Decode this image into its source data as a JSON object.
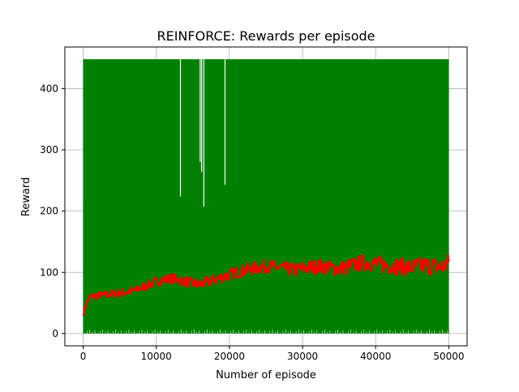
{
  "chart_data": {
    "type": "line",
    "title": "REINFORCE: Rewards per episode",
    "xlabel": "Number of episode",
    "ylabel": "Reward",
    "xlim": [
      -2500,
      52500
    ],
    "ylim": [
      -20,
      468
    ],
    "xticks": [
      0,
      10000,
      20000,
      30000,
      40000,
      50000
    ],
    "yticks": [
      0,
      100,
      200,
      300,
      400
    ],
    "grid": true,
    "colors": {
      "raw": "#008000",
      "avg": "#ff0000"
    },
    "raw_rewards": {
      "x_range": [
        0,
        50000
      ],
      "min": 0,
      "max": 448,
      "dips": [
        {
          "x": 13300,
          "y": 224
        },
        {
          "x": 16000,
          "y": 280
        },
        {
          "x": 16200,
          "y": 264
        },
        {
          "x": 16500,
          "y": 207
        },
        {
          "x": 19400,
          "y": 243
        }
      ]
    },
    "avg_rewards": {
      "x": [
        0,
        500,
        1000,
        2000,
        3000,
        4000,
        5000,
        6000,
        7000,
        8000,
        9000,
        10000,
        11000,
        12000,
        13000,
        14000,
        15000,
        16000,
        17000,
        18000,
        19000,
        20000,
        21000,
        22000,
        23000,
        24000,
        25000,
        26000,
        27000,
        28000,
        29000,
        30000,
        31000,
        32000,
        33000,
        34000,
        35000,
        36000,
        37000,
        38000,
        39000,
        40000,
        41000,
        42000,
        43000,
        44000,
        45000,
        46000,
        47000,
        48000,
        49000,
        50000
      ],
      "y": [
        32,
        50,
        60,
        62,
        63,
        65,
        66,
        68,
        70,
        75,
        80,
        85,
        88,
        90,
        88,
        85,
        82,
        80,
        84,
        88,
        92,
        96,
        100,
        103,
        106,
        108,
        110,
        109,
        107,
        105,
        104,
        106,
        108,
        110,
        109,
        107,
        106,
        108,
        112,
        115,
        116,
        114,
        112,
        111,
        110,
        109,
        108,
        110,
        111,
        110,
        108,
        115
      ]
    }
  }
}
